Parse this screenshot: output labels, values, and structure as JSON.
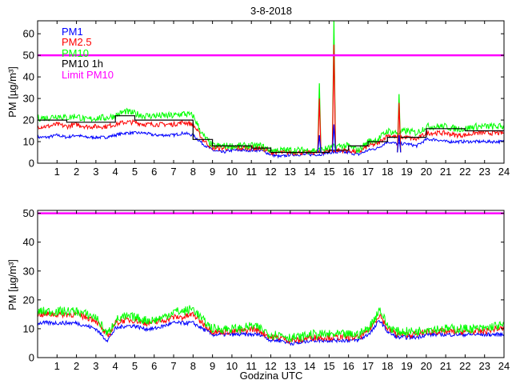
{
  "figure": {
    "title": "3-8-2018",
    "xlabel": "Godzina UTC"
  },
  "colors": {
    "pm1": "#0000ff",
    "pm25": "#ff0000",
    "pm10": "#00ff00",
    "pm10_1h": "#000000",
    "limit": "#ff00ff"
  },
  "chart_data": [
    {
      "type": "line",
      "title": "3-8-2018",
      "xlabel": "",
      "ylabel": "PM [µg/m³]",
      "xlim": [
        0,
        24
      ],
      "ylim": [
        0,
        66
      ],
      "xticks": [
        1,
        2,
        3,
        4,
        5,
        6,
        7,
        8,
        9,
        10,
        11,
        12,
        13,
        14,
        15,
        16,
        17,
        18,
        19,
        20,
        21,
        22,
        23,
        24
      ],
      "yticks": [
        0,
        10,
        20,
        30,
        40,
        50,
        60
      ],
      "legend_position": "top-left",
      "limit_value": 50,
      "legend": [
        "PM1",
        "PM2.5",
        "PM10",
        "PM10 1h",
        "Limit PM10"
      ],
      "x": [
        0,
        0.5,
        1,
        1.5,
        2,
        2.5,
        3,
        3.5,
        4,
        4.5,
        5,
        5.5,
        6,
        6.5,
        7,
        7.5,
        8,
        8.5,
        9,
        9.5,
        10,
        10.5,
        11,
        11.5,
        12,
        12.5,
        13,
        13.5,
        14,
        14.5,
        15,
        15.5,
        16,
        16.5,
        17,
        17.5,
        18,
        18.5,
        19,
        19.5,
        20,
        20.5,
        21,
        21.5,
        22,
        22.5,
        23,
        23.5,
        24
      ],
      "series": [
        {
          "name": "PM1",
          "key": "pm1",
          "values": [
            12,
            12,
            13,
            12,
            13,
            12,
            12,
            12,
            13,
            14,
            14,
            14,
            13,
            13,
            13,
            14,
            13,
            9,
            6,
            5,
            6,
            6,
            6,
            6,
            4,
            3,
            4,
            4,
            4,
            4,
            5,
            5,
            5,
            4,
            6,
            7,
            10,
            9,
            9,
            8,
            11,
            11,
            10,
            10,
            10,
            10,
            10,
            10,
            10
          ]
        },
        {
          "name": "PM2.5",
          "key": "pm25",
          "values": [
            17,
            17,
            18,
            17,
            18,
            17,
            17,
            17,
            18,
            19,
            19,
            18,
            18,
            18,
            18,
            19,
            18,
            11,
            7,
            7,
            7,
            7,
            7,
            7,
            5,
            5,
            5,
            5,
            5,
            5,
            6,
            6,
            6,
            5,
            8,
            9,
            13,
            12,
            12,
            11,
            14,
            14,
            14,
            13,
            13,
            14,
            14,
            14,
            14
          ]
        },
        {
          "name": "PM10",
          "key": "pm10",
          "values": [
            21,
            21,
            22,
            21,
            22,
            20,
            21,
            21,
            22,
            24,
            23,
            22,
            22,
            22,
            22,
            23,
            22,
            13,
            8,
            8,
            8,
            8,
            8,
            8,
            6,
            6,
            6,
            6,
            6,
            6,
            7,
            8,
            8,
            6,
            10,
            11,
            15,
            14,
            15,
            14,
            17,
            17,
            17,
            16,
            16,
            17,
            17,
            17,
            17
          ]
        },
        {
          "name": "PM10 1h",
          "key": "pm10_1h",
          "step": true,
          "values": [
            20,
            20,
            20,
            19,
            19,
            19,
            19,
            19,
            22,
            22,
            20,
            20,
            20,
            20,
            20,
            20,
            11,
            11,
            8,
            8,
            8,
            8,
            7,
            7,
            5,
            5,
            5,
            5,
            5,
            5,
            6,
            6,
            8,
            8,
            10,
            10,
            12,
            12,
            12,
            12,
            16,
            16,
            16,
            16,
            15,
            15,
            15,
            15,
            15
          ]
        }
      ],
      "spikes": [
        {
          "series": "pm10",
          "x": 14.5,
          "value": 37
        },
        {
          "series": "pm25",
          "x": 14.5,
          "value": 30
        },
        {
          "series": "pm1",
          "x": 14.5,
          "value": 13
        },
        {
          "series": "pm10",
          "x": 15.25,
          "value": 66
        },
        {
          "series": "pm25",
          "x": 15.25,
          "value": 55
        },
        {
          "series": "pm1",
          "x": 15.25,
          "value": 18
        },
        {
          "series": "pm10",
          "x": 18.6,
          "value": 32
        },
        {
          "series": "pm25",
          "x": 18.6,
          "value": 28
        },
        {
          "series": "pm1",
          "x": 18.6,
          "value": 13
        }
      ]
    },
    {
      "type": "line",
      "title": "",
      "xlabel": "Godzina UTC",
      "ylabel": "PM [µg/m³]",
      "xlim": [
        0,
        24
      ],
      "ylim": [
        0,
        51
      ],
      "xticks": [
        1,
        2,
        3,
        4,
        5,
        6,
        7,
        8,
        9,
        10,
        11,
        12,
        13,
        14,
        15,
        16,
        17,
        18,
        19,
        20,
        21,
        22,
        23,
        24
      ],
      "yticks": [
        0,
        10,
        20,
        30,
        40,
        50
      ],
      "limit_value": 50,
      "x": [
        0,
        0.5,
        1,
        1.5,
        2,
        2.5,
        3,
        3.4,
        3.6,
        4,
        4.5,
        5,
        5.5,
        6,
        6.5,
        7,
        7.5,
        8,
        8.5,
        9,
        9.5,
        10,
        10.5,
        11,
        11.5,
        12,
        12.5,
        13,
        13.5,
        14,
        14.5,
        15,
        15.5,
        16,
        16.5,
        17,
        17.3,
        17.6,
        18,
        18.5,
        19,
        19.5,
        20,
        20.5,
        21,
        21.5,
        22,
        22.5,
        23,
        23.5,
        24
      ],
      "series": [
        {
          "name": "PM1",
          "key": "pm1",
          "values": [
            12,
            12,
            12,
            12,
            12,
            11,
            10,
            7,
            6,
            10,
            11,
            11,
            10,
            10,
            11,
            12,
            12,
            12,
            10,
            8,
            8,
            8,
            8,
            8,
            8,
            6,
            6,
            5,
            5,
            6,
            6,
            6,
            6,
            6,
            6,
            8,
            10,
            13,
            9,
            7,
            7,
            7,
            8,
            8,
            8,
            8,
            8,
            8,
            8,
            8,
            8
          ]
        },
        {
          "name": "PM2.5",
          "key": "pm25",
          "values": [
            15,
            15,
            15,
            15,
            15,
            14,
            13,
            9,
            7,
            12,
            13,
            13,
            12,
            12,
            13,
            14,
            14,
            15,
            12,
            9,
            9,
            9,
            9,
            10,
            9,
            7,
            7,
            6,
            6,
            7,
            7,
            7,
            7,
            7,
            7,
            9,
            12,
            15,
            10,
            8,
            8,
            8,
            9,
            9,
            9,
            9,
            9,
            9,
            9,
            10,
            10
          ]
        },
        {
          "name": "PM10",
          "key": "pm10",
          "values": [
            16,
            16,
            16,
            16,
            16,
            15,
            14,
            10,
            8,
            13,
            14,
            14,
            13,
            13,
            14,
            16,
            16,
            17,
            13,
            10,
            10,
            10,
            10,
            11,
            10,
            8,
            8,
            7,
            7,
            8,
            8,
            8,
            8,
            8,
            8,
            10,
            13,
            17,
            11,
            9,
            9,
            9,
            10,
            10,
            10,
            10,
            10,
            10,
            10,
            11,
            11
          ]
        }
      ]
    }
  ]
}
